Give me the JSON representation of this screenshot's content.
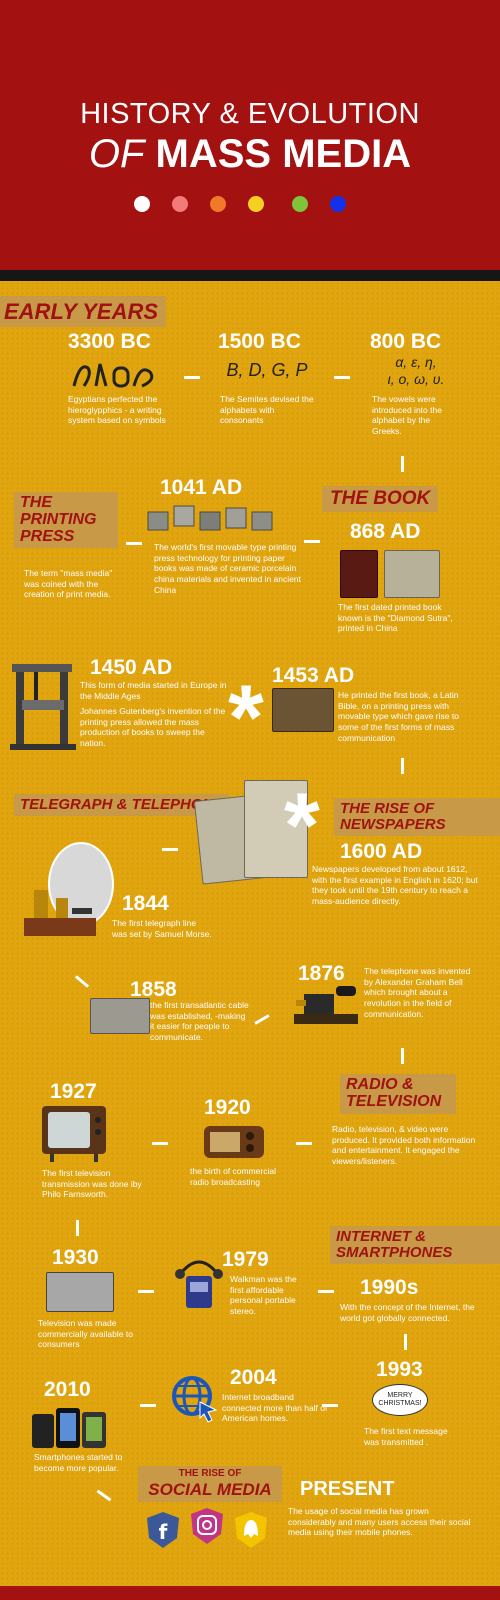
{
  "header": {
    "title_line1": "HISTORY & EVOLUTION",
    "title_of": "OF",
    "title_main": "MASS MEDIA",
    "dot_colors": [
      "#ffffff",
      "#f47a7a",
      "#f07a2a",
      "#f5d023",
      "#7fc43a",
      "#1430e8"
    ]
  },
  "colors": {
    "header_red": "#a31111",
    "body_gold": "#e0a50f",
    "label_box": "#c89a48"
  },
  "sections": {
    "early_years": "EARLY YEARS",
    "printing_press": "THE PRINTING PRESS",
    "the_book": "THE BOOK",
    "telegraph": "TELEGRAPH & TELEPHONE",
    "newspapers": "THE RISE OF NEWSPAPERS",
    "radio_tv": "RADIO & TELEVISION",
    "internet": "INTERNET & SMARTPHONES",
    "social_small": "THE RISE OF",
    "social_big": "SOCIAL MEDIA"
  },
  "events": {
    "e3300": {
      "year": "3300 BC",
      "desc": "Egyptians perfected the hieroglypphics - a writing system based on symbols"
    },
    "e1500": {
      "year": "1500 BC",
      "symbols": "B, D, G, P",
      "desc": "The Semites devised the alphabets with consonants"
    },
    "e800": {
      "year": "800 BC",
      "symbols1": "α, ε, η,",
      "symbols2": "ι, ο, ω, υ.",
      "desc": "The vowels were introduced into the alphabet by the Greeks."
    },
    "press_note": "The term \"mass media\" was coined with the creation of print media.",
    "e1041": {
      "year": "1041 AD",
      "desc": "The world's first movable type printing press technology for printing paper books was made of ceramic porcelain china materials and invented in ancient China"
    },
    "e868": {
      "year": "868 AD",
      "desc": "The first dated printed book known is the \"Diamond Sutra\", printed in China"
    },
    "e1450": {
      "year": "1450 AD",
      "desc1": "This form of media started in Europe in the Middle Ages",
      "desc2": "Johannes Gutenberg's invention of the printing press allowed the mass production of books to sweep the nation."
    },
    "e1453": {
      "year": "1453 AD",
      "desc": "He printed the first book, a Latin Bible, on a printing press with movable type which gave rise to some of the first forms of mass communication"
    },
    "e1600": {
      "year": "1600 AD",
      "desc": "Newspapers developed from about 1612, with the first example in English in 1620; but they took until the 19th century to reach a mass-audience directly."
    },
    "e1844": {
      "year": "1844",
      "desc": "The first telegraph line was set by Samuel Morse."
    },
    "e1858": {
      "year": "1858",
      "desc": "the first transatlantic cable was established, -making it easier for people to communicate."
    },
    "e1876": {
      "year": "1876",
      "desc": "The telephone was invented by Alexander Graham Bell which brought about a revolution in the field of communication."
    },
    "radio_note": "Radio, television, & video were produced. It provided both information and entertainment. It engaged the viewers/listeners.",
    "e1927": {
      "year": "1927",
      "desc": "The first television transmission was done iby Philo Farnsworth."
    },
    "e1920": {
      "year": "1920",
      "desc": "the birth of commercial radio broadcasting"
    },
    "e1930": {
      "year": "1930",
      "desc": "Television was made commercially available to consumers"
    },
    "e1979": {
      "year": "1979",
      "desc": "Walkman was the first affordable personal portable stereo."
    },
    "e1990": {
      "year": "1990s",
      "desc": "With the concept of the Internet, the world got globally connected."
    },
    "e1993": {
      "year": "1993",
      "bubble": "MERRY CHRISTMAS!",
      "desc": "The first text message was transmitted ."
    },
    "e2004": {
      "year": "2004",
      "desc": "Internet broadband connected more than half of American homes."
    },
    "e2010": {
      "year": "2010",
      "desc": "Smartphones started to become more popular."
    },
    "present": {
      "year": "PRESENT",
      "desc": "The usage of social media has grown considerably and many users access their social media using their mobile phones."
    }
  },
  "icons": [
    "facebook-icon",
    "instagram-icon",
    "snapchat-icon",
    "globe-cursor-icon"
  ]
}
